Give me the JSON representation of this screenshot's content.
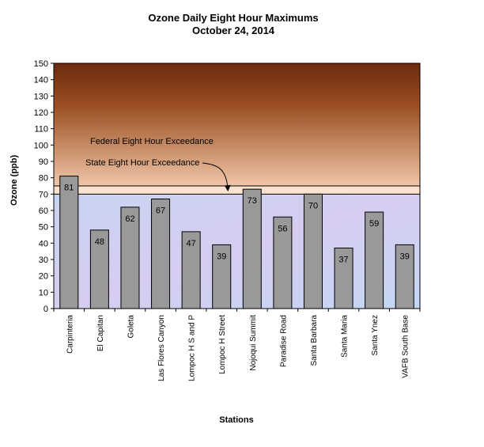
{
  "chart_data": {
    "type": "bar",
    "title": "Ozone Daily Eight Hour Maximums",
    "subtitle": "October 24, 2014",
    "xlabel": "Stations",
    "ylabel": "Ozone (ppb)",
    "ylim": [
      0,
      150
    ],
    "yticks": [
      0,
      10,
      20,
      30,
      40,
      50,
      60,
      70,
      80,
      90,
      100,
      110,
      120,
      130,
      140,
      150
    ],
    "categories": [
      "Carpinteria",
      "El Capitan",
      "Goleta",
      "Las Flores Canyon",
      "Lompoc H S and P",
      "Lompoc H Street",
      "Nojoqui Summit",
      "Paradise Road",
      "Santa Barbara",
      "Santa Maria",
      "Santa Ynez",
      "VAFB South Base"
    ],
    "values": [
      81,
      48,
      62,
      67,
      47,
      39,
      73,
      56,
      70,
      37,
      59,
      39
    ],
    "thresholds": [
      {
        "label": "Federal Eight Hour Exceedance",
        "value": 75
      },
      {
        "label": "State Eight Hour Exceedance",
        "value": 70
      }
    ],
    "bar_color": "#999999",
    "grid": false
  }
}
